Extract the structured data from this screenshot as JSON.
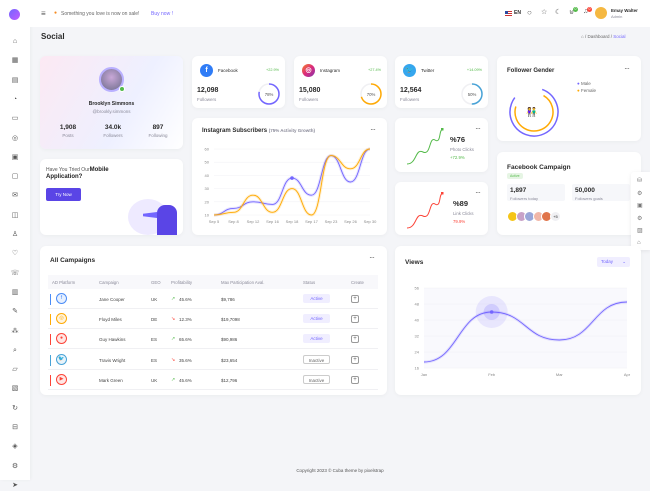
{
  "header": {
    "promo_text": "Something you love is now on sale!",
    "promo_link": "Buy now !",
    "language": "EN",
    "notif_count_1": "0",
    "notif_count_2": "0",
    "user_name": "Emay Walter",
    "user_role": "Admin"
  },
  "page": {
    "title": "Social",
    "breadcrumb": [
      "Dashboard",
      "Social"
    ]
  },
  "profile": {
    "name": "Brooklyn Simmons",
    "handle": "@brookly.simmons",
    "stats": [
      {
        "value": "1,908",
        "label": "Posts"
      },
      {
        "value": "34.0k",
        "label": "Followers"
      },
      {
        "value": "897",
        "label": "Following"
      }
    ]
  },
  "mobile": {
    "title_part1": "Have You Tried Our",
    "title_part2": "Mobile",
    "title_part3": "Application?",
    "button": "Try Now"
  },
  "social": [
    {
      "name": "Facebook",
      "growth": "+22.9%",
      "value": "12,098",
      "label": "Followers",
      "percent": "78%",
      "pct": 78,
      "color": "#7366ff",
      "icon": "facebook-icon"
    },
    {
      "name": "Instagram",
      "growth": "+27.4%",
      "value": "15,080",
      "label": "Followers",
      "percent": "70%",
      "pct": 70,
      "color": "#ffaa05",
      "icon": "instagram-icon"
    },
    {
      "name": "Twitter",
      "growth": "+14.09%",
      "value": "12,564",
      "label": "Followers",
      "percent": "50%",
      "pct": 50,
      "color": "#48a3d7",
      "icon": "twitter-icon"
    }
  ],
  "insta": {
    "title": "Instagram Subscribers",
    "subtitle": "(75% Activity Growth)"
  },
  "clicks": [
    {
      "value": "%76",
      "label": "Photo Clicks",
      "change": "+72.9%",
      "color": "#54ba4a"
    },
    {
      "value": "%89",
      "label": "Link Clicks",
      "change": "79.9%",
      "color": "#fc4438"
    }
  ],
  "gender": {
    "title": "Follower Gender",
    "legend": [
      "Male",
      "Female"
    ],
    "colors": [
      "#7366ff",
      "#ffaa05"
    ]
  },
  "fb_campaign": {
    "title": "Facebook Campaign",
    "badge": "Active",
    "followers_today": "1,897",
    "followers_today_label": "Followers today",
    "followers_goals": "50,000",
    "followers_goals_label": "Followers goals",
    "more": "+5"
  },
  "campaigns": {
    "title": "All Campaigns",
    "columns": [
      "AD Platform",
      "Campaign",
      "GEO",
      "Profitability",
      "Max Participation Aval.",
      "Status",
      "Create"
    ],
    "rows": [
      {
        "platform": "facebook",
        "color": "#4a8cf7",
        "campaign": "Jane Cooper",
        "geo": "UK",
        "trend": "up",
        "profit": "45.6%",
        "max": "$9,786",
        "status": "Active"
      },
      {
        "platform": "instagram",
        "color": "#ffaa05",
        "campaign": "Floyd Miles",
        "geo": "DE",
        "trend": "down",
        "profit": "12.3%",
        "max": "$19,7098",
        "status": "Active"
      },
      {
        "platform": "pinterest",
        "color": "#fc4438",
        "campaign": "Guy Hawkins",
        "geo": "ES",
        "trend": "up",
        "profit": "65.6%",
        "max": "$90,986",
        "status": "Active"
      },
      {
        "platform": "twitter",
        "color": "#48a3d7",
        "campaign": "Travis Wright",
        "geo": "ES",
        "trend": "down",
        "profit": "35.6%",
        "max": "$23,654",
        "status": "Inactive"
      },
      {
        "platform": "youtube",
        "color": "#fc4438",
        "campaign": "Mark Green",
        "geo": "UK",
        "trend": "up",
        "profit": "45.6%",
        "max": "$12,796",
        "status": "Inactive"
      }
    ]
  },
  "views": {
    "title": "Views",
    "select": "Today"
  },
  "chart_data": [
    {
      "type": "line",
      "title": "Instagram Subscribers",
      "categories": [
        "Sep 5",
        "Sep 8",
        "Sep 12",
        "Sep 16",
        "Sep 18",
        "Sep 17",
        "Sep 23",
        "Sep 26",
        "Sep 30"
      ],
      "ylim": [
        10,
        60
      ],
      "yticks": [
        10,
        20,
        30,
        40,
        50,
        60
      ],
      "series": [
        {
          "values": [
            10,
            15,
            20,
            18,
            38,
            25,
            55,
            35,
            60
          ],
          "color": "#7366ff"
        },
        {
          "values": [
            10,
            12,
            25,
            12,
            30,
            10,
            55,
            45,
            60
          ],
          "color": "#ffaa05"
        }
      ],
      "grid": true
    },
    {
      "type": "area",
      "title": "Views",
      "categories": [
        "Jan",
        "Feb",
        "Mar",
        "Apr"
      ],
      "ylim": [
        16,
        56
      ],
      "yticks": [
        16,
        24,
        32,
        40,
        48,
        56
      ],
      "series": [
        {
          "values": [
            19,
            44,
            30,
            49
          ],
          "color": "#7366ff"
        }
      ],
      "highlight": "Feb",
      "grid": true
    }
  ],
  "footer": {
    "text": "Copyright 2023 © Cuba theme by pixelstrap"
  }
}
